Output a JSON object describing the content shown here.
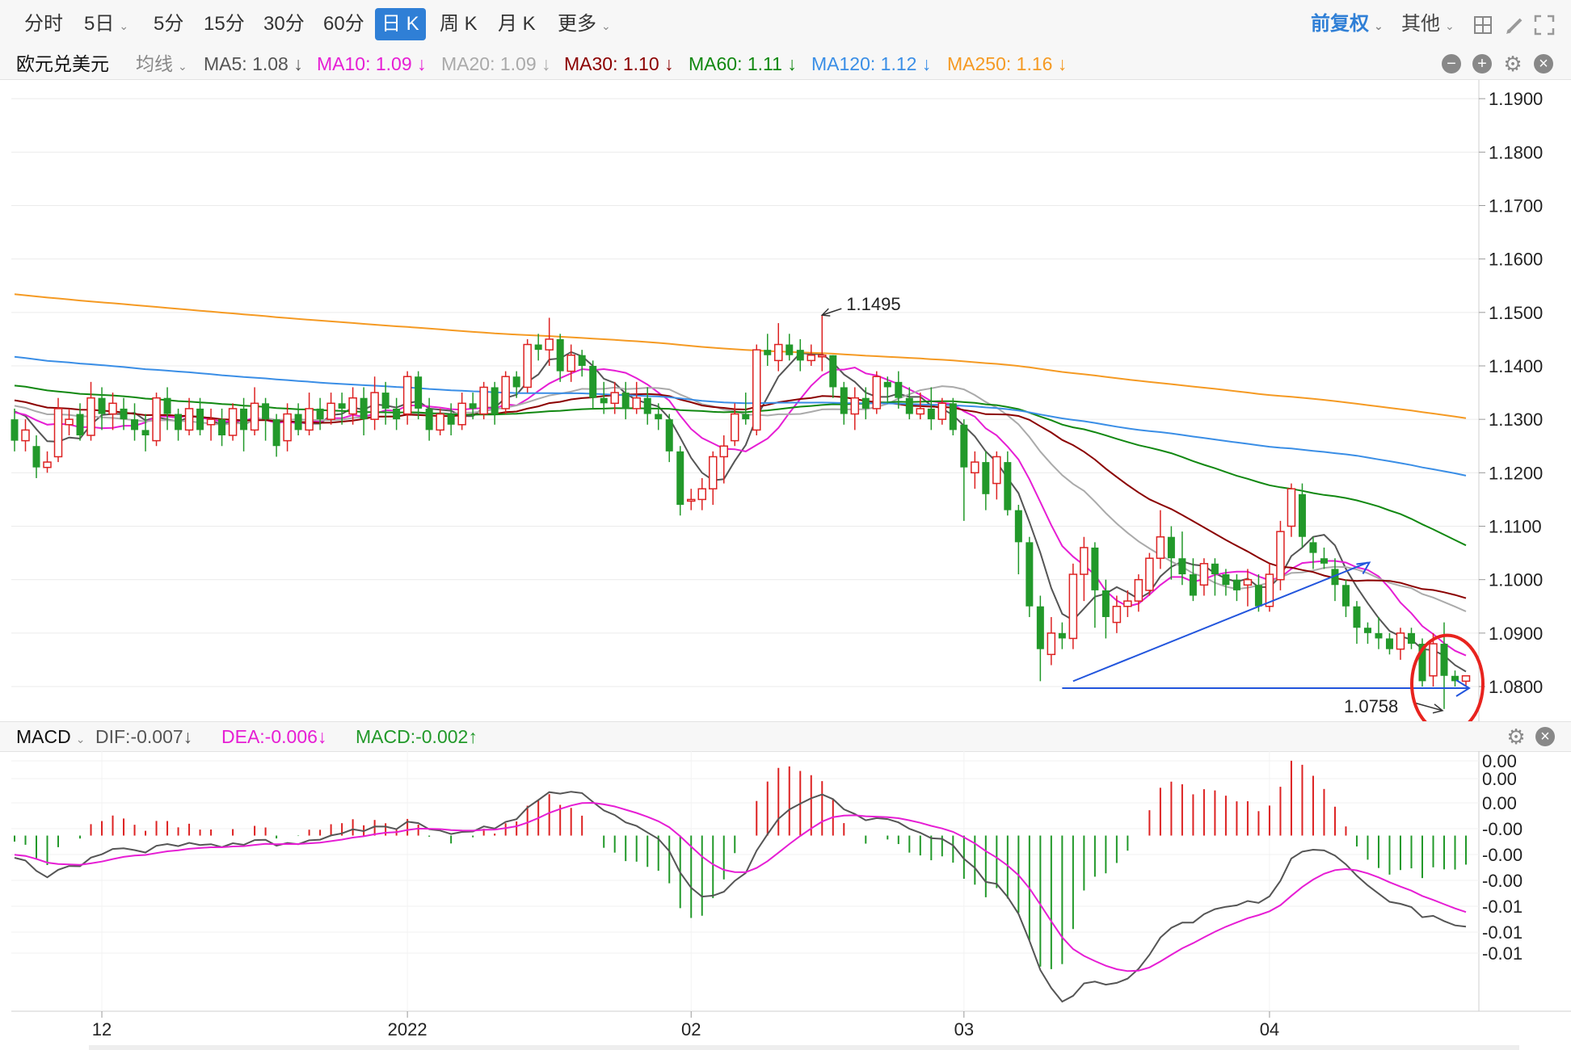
{
  "tabs": {
    "items": [
      "分时",
      "5日",
      "5分",
      "15分",
      "30分",
      "60分",
      "日 K",
      "周 K",
      "月 K",
      "更多"
    ],
    "active": "日 K"
  },
  "right_controls": {
    "adjust": "前复权",
    "other": "其他"
  },
  "symbol": "欧元兑美元",
  "ma_header": {
    "indicator": "均线",
    "items": [
      {
        "label": "MA5: 1.08 ↓",
        "color": "#555555"
      },
      {
        "label": "MA10: 1.09 ↓",
        "color": "#e61ed4"
      },
      {
        "label": "MA20: 1.09 ↓",
        "color": "#aaaaaa"
      },
      {
        "label": "MA30: 1.10 ↓",
        "color": "#8b0000"
      },
      {
        "label": "MA60: 1.11 ↓",
        "color": "#118811"
      },
      {
        "label": "MA120: 1.12 ↓",
        "color": "#3a8ee6"
      },
      {
        "label": "MA250: 1.16 ↓",
        "color": "#f59a23"
      }
    ]
  },
  "macd_header": {
    "name": "MACD",
    "dif": "DIF:-0.007↓",
    "dea": "DEA:-0.006↓",
    "macd": "MACD:-0.002↑"
  },
  "chart_data": [
    {
      "type": "candlestick",
      "title": "欧元兑美元",
      "ylim": [
        1.0735,
        1.1935
      ],
      "y_ticks": [
        "1.1900",
        "1.1800",
        "1.1700",
        "1.1600",
        "1.1500",
        "1.1400",
        "1.1300",
        "1.1200",
        "1.1100",
        "1.1000",
        "1.0900",
        "1.0800"
      ],
      "x_ticks": [
        "12",
        "2022",
        "02",
        "03",
        "04"
      ],
      "candles": [
        [
          1.13,
          1.126,
          1.132,
          1.124
        ],
        [
          1.126,
          1.128,
          1.13,
          1.124
        ],
        [
          1.125,
          1.121,
          1.127,
          1.119
        ],
        [
          1.121,
          1.122,
          1.124,
          1.12
        ],
        [
          1.123,
          1.132,
          1.134,
          1.122
        ],
        [
          1.129,
          1.13,
          1.132,
          1.127
        ],
        [
          1.131,
          1.127,
          1.133,
          1.126
        ],
        [
          1.127,
          1.134,
          1.137,
          1.126
        ],
        [
          1.134,
          1.131,
          1.136,
          1.128
        ],
        [
          1.131,
          1.133,
          1.135,
          1.128
        ],
        [
          1.132,
          1.13,
          1.134,
          1.128
        ],
        [
          1.13,
          1.128,
          1.133,
          1.126
        ],
        [
          1.128,
          1.127,
          1.131,
          1.124
        ],
        [
          1.126,
          1.134,
          1.135,
          1.125
        ],
        [
          1.134,
          1.131,
          1.136,
          1.128
        ],
        [
          1.131,
          1.128,
          1.132,
          1.126
        ],
        [
          1.128,
          1.132,
          1.134,
          1.127
        ],
        [
          1.132,
          1.128,
          1.134,
          1.127
        ],
        [
          1.129,
          1.13,
          1.132,
          1.126
        ],
        [
          1.13,
          1.127,
          1.132,
          1.125
        ],
        [
          1.127,
          1.132,
          1.133,
          1.126
        ],
        [
          1.132,
          1.128,
          1.134,
          1.124
        ],
        [
          1.128,
          1.133,
          1.136,
          1.127
        ],
        [
          1.133,
          1.13,
          1.134,
          1.126
        ],
        [
          1.13,
          1.125,
          1.131,
          1.123
        ],
        [
          1.126,
          1.131,
          1.133,
          1.124
        ],
        [
          1.131,
          1.128,
          1.133,
          1.127
        ],
        [
          1.128,
          1.132,
          1.135,
          1.127
        ],
        [
          1.132,
          1.13,
          1.134,
          1.128
        ],
        [
          1.13,
          1.133,
          1.135,
          1.129
        ],
        [
          1.133,
          1.132,
          1.135,
          1.129
        ],
        [
          1.131,
          1.134,
          1.136,
          1.129
        ],
        [
          1.134,
          1.13,
          1.136,
          1.127
        ],
        [
          1.13,
          1.135,
          1.138,
          1.128
        ],
        [
          1.135,
          1.132,
          1.137,
          1.129
        ],
        [
          1.132,
          1.13,
          1.134,
          1.128
        ],
        [
          1.131,
          1.138,
          1.139,
          1.129
        ],
        [
          1.138,
          1.132,
          1.139,
          1.13
        ],
        [
          1.132,
          1.128,
          1.134,
          1.126
        ],
        [
          1.128,
          1.131,
          1.132,
          1.127
        ],
        [
          1.131,
          1.129,
          1.133,
          1.127
        ],
        [
          1.129,
          1.133,
          1.135,
          1.128
        ],
        [
          1.133,
          1.132,
          1.135,
          1.13
        ],
        [
          1.131,
          1.136,
          1.137,
          1.13
        ],
        [
          1.136,
          1.131,
          1.137,
          1.129
        ],
        [
          1.132,
          1.138,
          1.139,
          1.131
        ],
        [
          1.138,
          1.136,
          1.139,
          1.134
        ],
        [
          1.136,
          1.144,
          1.145,
          1.135
        ],
        [
          1.144,
          1.143,
          1.146,
          1.141
        ],
        [
          1.143,
          1.145,
          1.149,
          1.14
        ],
        [
          1.145,
          1.139,
          1.146,
          1.137
        ],
        [
          1.139,
          1.142,
          1.144,
          1.137
        ],
        [
          1.142,
          1.14,
          1.143,
          1.138
        ],
        [
          1.14,
          1.134,
          1.141,
          1.132
        ],
        [
          1.134,
          1.133,
          1.137,
          1.131
        ],
        [
          1.133,
          1.135,
          1.137,
          1.131
        ],
        [
          1.135,
          1.132,
          1.137,
          1.13
        ],
        [
          1.132,
          1.134,
          1.137,
          1.131
        ],
        [
          1.134,
          1.131,
          1.136,
          1.129
        ],
        [
          1.131,
          1.13,
          1.133,
          1.128
        ],
        [
          1.13,
          1.124,
          1.131,
          1.122
        ],
        [
          1.124,
          1.114,
          1.125,
          1.112
        ],
        [
          1.115,
          1.115,
          1.117,
          1.113
        ],
        [
          1.115,
          1.117,
          1.119,
          1.113
        ],
        [
          1.117,
          1.123,
          1.124,
          1.114
        ],
        [
          1.123,
          1.125,
          1.127,
          1.118
        ],
        [
          1.126,
          1.131,
          1.133,
          1.125
        ],
        [
          1.131,
          1.13,
          1.135,
          1.129
        ],
        [
          1.128,
          1.143,
          1.144,
          1.127
        ],
        [
          1.143,
          1.142,
          1.146,
          1.14
        ],
        [
          1.141,
          1.144,
          1.148,
          1.139
        ],
        [
          1.144,
          1.142,
          1.146,
          1.141
        ],
        [
          1.143,
          1.141,
          1.145,
          1.139
        ],
        [
          1.141,
          1.142,
          1.144,
          1.14
        ],
        [
          1.142,
          1.142,
          1.1495,
          1.139
        ],
        [
          1.142,
          1.136,
          1.142,
          1.134
        ],
        [
          1.136,
          1.131,
          1.137,
          1.129
        ],
        [
          1.131,
          1.134,
          1.136,
          1.128
        ],
        [
          1.134,
          1.132,
          1.136,
          1.13
        ],
        [
          1.132,
          1.138,
          1.139,
          1.131
        ],
        [
          1.137,
          1.136,
          1.138,
          1.133
        ],
        [
          1.137,
          1.134,
          1.139,
          1.132
        ],
        [
          1.134,
          1.131,
          1.136,
          1.13
        ],
        [
          1.131,
          1.132,
          1.135,
          1.13
        ],
        [
          1.132,
          1.13,
          1.136,
          1.128
        ],
        [
          1.13,
          1.133,
          1.134,
          1.129
        ],
        [
          1.133,
          1.128,
          1.134,
          1.127
        ],
        [
          1.129,
          1.121,
          1.13,
          1.111
        ],
        [
          1.12,
          1.122,
          1.124,
          1.117
        ],
        [
          1.122,
          1.116,
          1.124,
          1.113
        ],
        [
          1.118,
          1.123,
          1.124,
          1.115
        ],
        [
          1.122,
          1.113,
          1.124,
          1.112
        ],
        [
          1.113,
          1.107,
          1.114,
          1.101
        ],
        [
          1.107,
          1.095,
          1.108,
          1.093
        ],
        [
          1.095,
          1.087,
          1.097,
          1.081
        ],
        [
          1.086,
          1.09,
          1.093,
          1.084
        ],
        [
          1.09,
          1.089,
          1.092,
          1.087
        ],
        [
          1.089,
          1.101,
          1.103,
          1.087
        ],
        [
          1.101,
          1.106,
          1.108,
          1.096
        ],
        [
          1.106,
          1.098,
          1.107,
          1.091
        ],
        [
          1.098,
          1.093,
          1.1,
          1.089
        ],
        [
          1.092,
          1.095,
          1.097,
          1.09
        ],
        [
          1.095,
          1.096,
          1.098,
          1.093
        ],
        [
          1.096,
          1.1,
          1.101,
          1.094
        ],
        [
          1.098,
          1.104,
          1.105,
          1.097
        ],
        [
          1.104,
          1.108,
          1.113,
          1.102
        ],
        [
          1.108,
          1.104,
          1.11,
          1.1
        ],
        [
          1.104,
          1.101,
          1.109,
          1.099
        ],
        [
          1.101,
          1.097,
          1.104,
          1.096
        ],
        [
          1.099,
          1.103,
          1.104,
          1.097
        ],
        [
          1.103,
          1.101,
          1.104,
          1.097
        ],
        [
          1.101,
          1.099,
          1.102,
          1.097
        ],
        [
          1.1,
          1.098,
          1.101,
          1.096
        ],
        [
          1.099,
          1.1,
          1.102,
          1.095
        ],
        [
          1.099,
          1.095,
          1.101,
          1.094
        ],
        [
          1.095,
          1.101,
          1.103,
          1.094
        ],
        [
          1.1,
          1.109,
          1.111,
          1.098
        ],
        [
          1.11,
          1.117,
          1.118,
          1.108
        ],
        [
          1.116,
          1.108,
          1.118,
          1.106
        ],
        [
          1.107,
          1.105,
          1.108,
          1.102
        ],
        [
          1.104,
          1.103,
          1.106,
          1.102
        ],
        [
          1.102,
          1.099,
          1.104,
          1.096
        ],
        [
          1.099,
          1.095,
          1.1,
          1.093
        ],
        [
          1.095,
          1.091,
          1.096,
          1.088
        ],
        [
          1.091,
          1.09,
          1.092,
          1.088
        ],
        [
          1.09,
          1.089,
          1.093,
          1.087
        ],
        [
          1.089,
          1.087,
          1.09,
          1.086
        ],
        [
          1.087,
          1.09,
          1.091,
          1.085
        ],
        [
          1.09,
          1.088,
          1.091,
          1.087
        ],
        [
          1.088,
          1.081,
          1.089,
          1.08
        ],
        [
          1.082,
          1.088,
          1.09,
          1.08
        ],
        [
          1.088,
          1.082,
          1.092,
          1.0758
        ],
        [
          1.082,
          1.081,
          1.083,
          1.08
        ],
        [
          1.081,
          1.082,
          1.082,
          1.08
        ]
      ],
      "annotations": [
        {
          "text": "1.1495",
          "value": 1.1495
        },
        {
          "text": "1.0758",
          "value": 1.0758
        }
      ],
      "ma_series": [
        {
          "name": "MA5",
          "color": "#555555"
        },
        {
          "name": "MA10",
          "color": "#e61ed4"
        },
        {
          "name": "MA20",
          "color": "#aaaaaa"
        },
        {
          "name": "MA30",
          "color": "#8b0000"
        },
        {
          "name": "MA60",
          "color": "#118811"
        },
        {
          "name": "MA120",
          "color": "#3a8ee6"
        },
        {
          "name": "MA250",
          "color": "#f59a23"
        }
      ],
      "trend_lines": [
        {
          "color": "#2255dd",
          "from": [
            1.081
          ],
          "to": [
            1.1032
          ]
        },
        {
          "color": "#2255dd",
          "from": [
            1.0797
          ],
          "to": [
            1.0797
          ]
        }
      ]
    },
    {
      "type": "macd",
      "y_ticks": [
        "0.00",
        "0.00",
        "0.00",
        "-0.00",
        "-0.00",
        "-0.00",
        "-0.01",
        "-0.01",
        "-0.01"
      ],
      "dif_color": "#555555",
      "dea_color": "#e61ed4",
      "hist_up_color": "#dd2222",
      "hist_down_color": "#22992a"
    }
  ]
}
